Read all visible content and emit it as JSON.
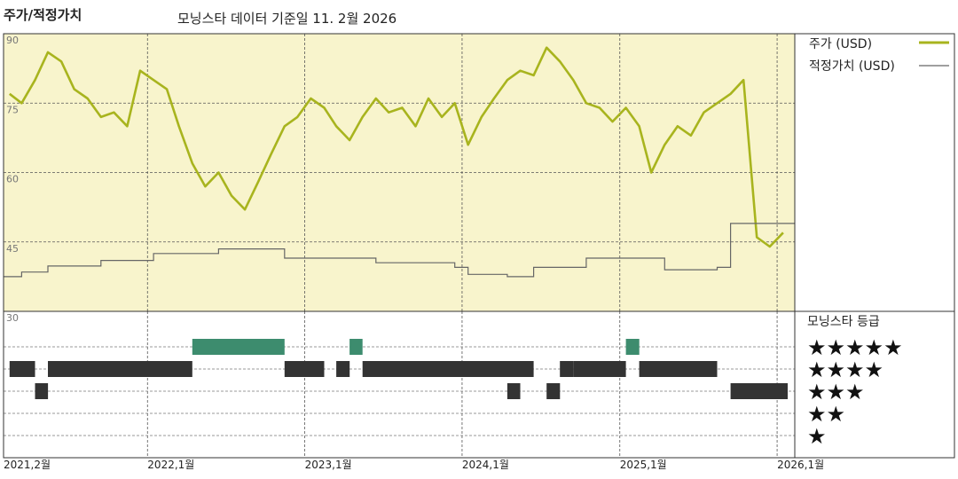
{
  "header": {
    "title": "주가/적정가치",
    "subtitle": "모닝스타 데이터 기준일 11. 2월 2026"
  },
  "legend": {
    "price_label": "주가 (USD)",
    "fair_value_label": "적정가치 (USD)",
    "rating_title": "모닝스타 등급"
  },
  "colors": {
    "price": "#a8b41e",
    "fair_value": "#666666",
    "plot_background": "#f8f4cc",
    "rating_5": "#3d8c6e",
    "rating_other": "#333333",
    "star": "#111111"
  },
  "chart_data": {
    "type": "line",
    "title": "주가/적정가치",
    "subtitle": "모닝스타 데이터 기준일 11. 2월 2026",
    "y_ticks": [
      "90",
      "75",
      "60",
      "45",
      "30"
    ],
    "ylim": [
      30,
      90
    ],
    "x_ticks": [
      "2021,2월",
      "2022,1월",
      "2023,1월",
      "2024,1월",
      "2025,1월",
      "2026,1월"
    ],
    "x_tick_dates": [
      "2021-02",
      "2022-01",
      "2023-01",
      "2024-01",
      "2025-01",
      "2026-01"
    ],
    "xlim": [
      "2021-02-01",
      "2026-02-11"
    ],
    "grid": true,
    "series": [
      {
        "name": "주가 (USD)",
        "x": [
          "2021-02",
          "2021-03",
          "2021-04",
          "2021-05",
          "2021-06",
          "2021-07",
          "2021-08",
          "2021-09",
          "2021-10",
          "2021-11",
          "2021-12",
          "2022-01",
          "2022-02",
          "2022-03",
          "2022-04",
          "2022-05",
          "2022-06",
          "2022-07",
          "2022-08",
          "2022-09",
          "2022-10",
          "2022-11",
          "2022-12",
          "2023-01",
          "2023-02",
          "2023-03",
          "2023-04",
          "2023-05",
          "2023-06",
          "2023-07",
          "2023-08",
          "2023-09",
          "2023-10",
          "2023-11",
          "2023-12",
          "2024-01",
          "2024-02",
          "2024-03",
          "2024-04",
          "2024-05",
          "2024-06",
          "2024-07",
          "2024-08",
          "2024-09",
          "2024-10",
          "2024-11",
          "2024-12",
          "2025-01",
          "2025-02",
          "2025-03",
          "2025-04",
          "2025-05",
          "2025-06",
          "2025-07",
          "2025-08",
          "2025-09",
          "2025-10",
          "2025-11",
          "2025-12",
          "2026-01",
          "2026-02"
        ],
        "y": [
          77,
          75,
          80,
          86,
          84,
          78,
          76,
          72,
          73,
          70,
          82,
          80,
          78,
          70,
          62,
          57,
          60,
          55,
          52,
          58,
          64,
          70,
          72,
          76,
          74,
          70,
          67,
          72,
          76,
          73,
          74,
          70,
          76,
          72,
          75,
          66,
          72,
          76,
          80,
          82,
          81,
          87,
          84,
          80,
          75,
          74,
          71,
          74,
          70,
          60,
          66,
          70,
          68,
          73,
          75,
          77,
          80,
          46,
          44,
          47,
          53
        ]
      },
      {
        "name": "적정가치 (USD)",
        "x": [
          "2021-02",
          "2021-03",
          "2021-05",
          "2021-09",
          "2022-01",
          "2022-06",
          "2022-11",
          "2023-06",
          "2023-12",
          "2024-01",
          "2024-04",
          "2024-06",
          "2024-10",
          "2024-11",
          "2025-04",
          "2025-08",
          "2025-09",
          "2026-02"
        ],
        "y": [
          37.5,
          38.5,
          39.8,
          41,
          42.5,
          43.5,
          41.5,
          40.5,
          39.5,
          38,
          37.5,
          39.5,
          41.5,
          41.5,
          39,
          39.5,
          49,
          49
        ]
      }
    ],
    "star_ratings": {
      "title": "모닝스타 등급",
      "levels": [
        5,
        4,
        3,
        2,
        1
      ],
      "periods": [
        {
          "start": "2021-02",
          "end": "2021-04",
          "stars": 4
        },
        {
          "start": "2021-04",
          "end": "2021-05",
          "stars": 3
        },
        {
          "start": "2021-05",
          "end": "2022-04",
          "stars": 4
        },
        {
          "start": "2022-04",
          "end": "2022-11",
          "stars": 5
        },
        {
          "start": "2022-11",
          "end": "2023-02",
          "stars": 4
        },
        {
          "start": "2023-04",
          "end": "2023-05",
          "stars": 5
        },
        {
          "start": "2023-03",
          "end": "2023-04",
          "stars": 4
        },
        {
          "start": "2023-05",
          "end": "2024-06",
          "stars": 4
        },
        {
          "start": "2024-04",
          "end": "2024-05",
          "stars": 3
        },
        {
          "start": "2024-07",
          "end": "2024-08",
          "stars": 3
        },
        {
          "start": "2024-08",
          "end": "2024-09",
          "stars": 4
        },
        {
          "start": "2024-09",
          "end": "2025-01",
          "stars": 4
        },
        {
          "start": "2025-01",
          "end": "2025-02",
          "stars": 5
        },
        {
          "start": "2025-02",
          "end": "2025-08",
          "stars": 4
        },
        {
          "start": "2025-09",
          "end": "2026-02",
          "stars": 3
        }
      ]
    }
  }
}
